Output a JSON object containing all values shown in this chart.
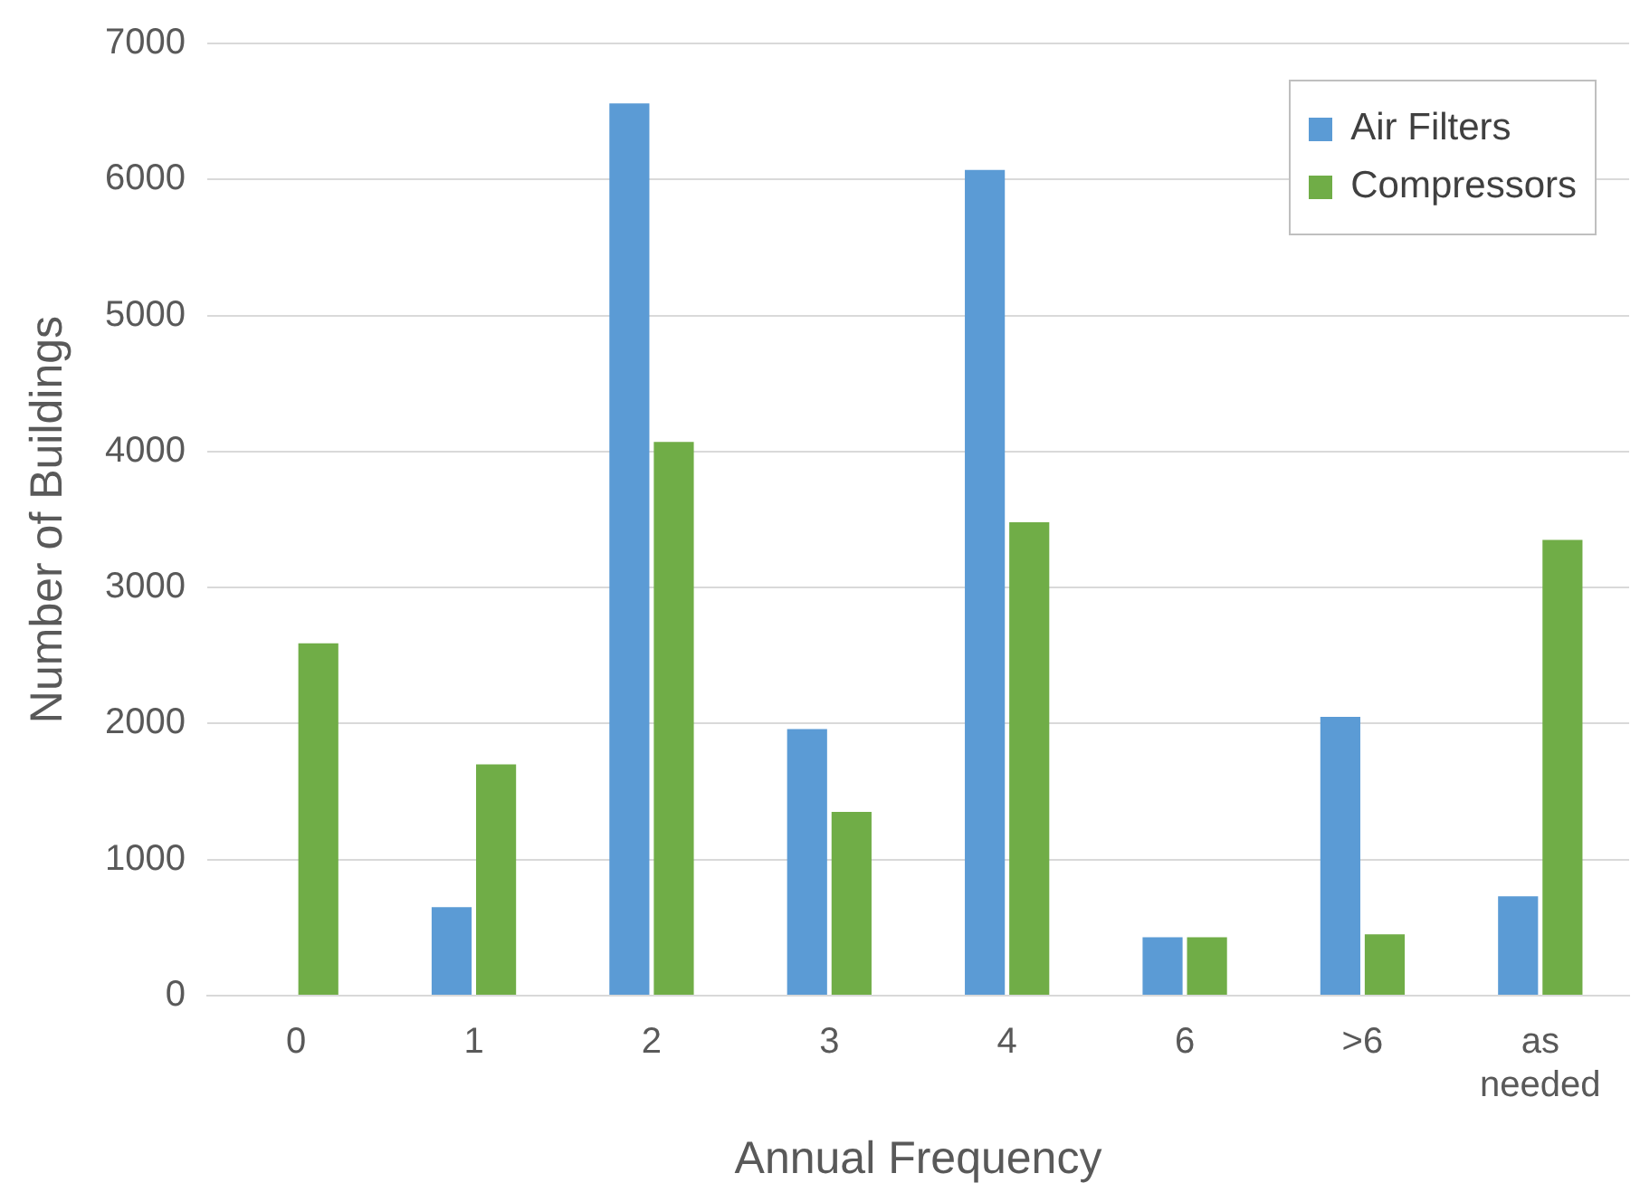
{
  "chart_data": {
    "type": "bar",
    "xlabel": "Annual Frequency",
    "ylabel": "Number of Buildings",
    "categories": [
      "0",
      "1",
      "2",
      "3",
      "4",
      "6",
      ">6",
      "as needed"
    ],
    "series": [
      {
        "name": "Air Filters",
        "color": "#5b9bd5",
        "values": [
          0,
          650,
          6560,
          1960,
          6070,
          430,
          2050,
          730
        ]
      },
      {
        "name": "Compressors",
        "color": "#70ad47",
        "values": [
          2590,
          1700,
          4070,
          1350,
          3480,
          430,
          450,
          3350
        ]
      }
    ],
    "ylim": [
      0,
      7000
    ],
    "yticks": [
      0,
      1000,
      2000,
      3000,
      4000,
      5000,
      6000,
      7000
    ],
    "grid": "y",
    "legend": "top right"
  }
}
